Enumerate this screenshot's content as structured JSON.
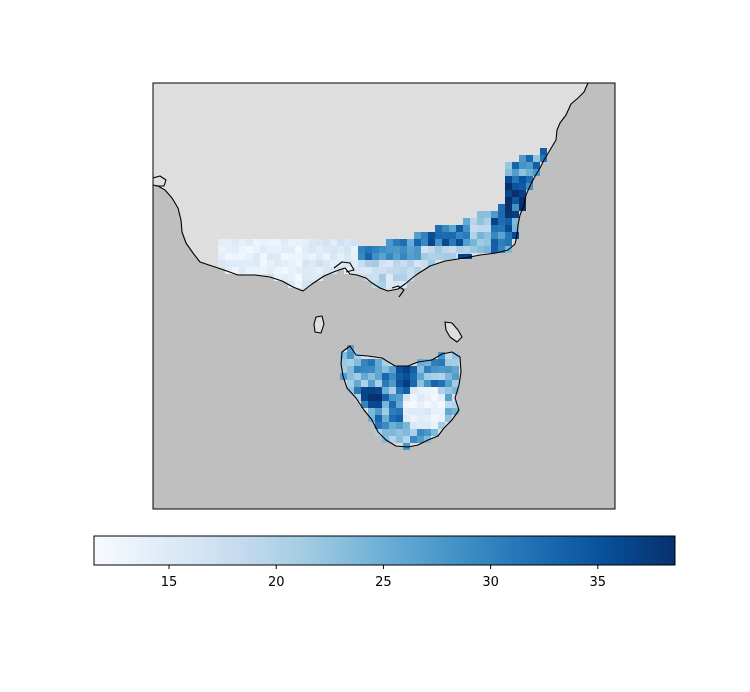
{
  "map": {
    "land_color": "#dedede",
    "ocean_color": "#bfbfbf",
    "coastline_color": "#000000",
    "colormap": "Blues",
    "fields": [
      {
        "region": "southern-victoria-strip",
        "values": [
          12,
          13,
          14,
          15,
          16,
          17,
          18,
          22,
          26,
          30,
          34
        ]
      },
      {
        "region": "gippsland-east-coast",
        "values": [
          18,
          22,
          26,
          30,
          33,
          36,
          38
        ]
      },
      {
        "region": "tasmania",
        "values": [
          12,
          14,
          18,
          22,
          26,
          30,
          34,
          37
        ]
      }
    ]
  },
  "colorbar": {
    "vmin": 11.5,
    "vmax": 38.6,
    "ticks": [
      {
        "value": 15,
        "label": "15"
      },
      {
        "value": 20,
        "label": "20"
      },
      {
        "value": 25,
        "label": "25"
      },
      {
        "value": 30,
        "label": "30"
      },
      {
        "value": 35,
        "label": "35"
      }
    ],
    "colors": [
      "#f7fbff",
      "#deebf7",
      "#c6dbef",
      "#9ecae1",
      "#6baed6",
      "#4292c6",
      "#2171b5",
      "#08519c",
      "#08306b"
    ]
  }
}
